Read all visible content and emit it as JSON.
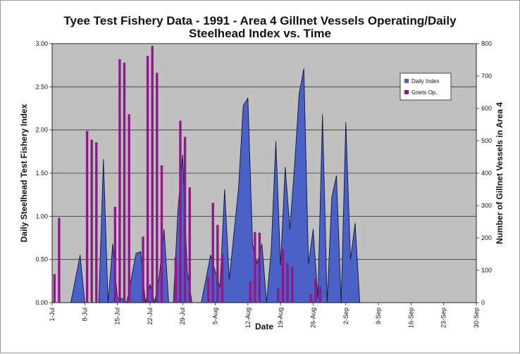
{
  "chart_data": {
    "type": "area+bar",
    "title_line1": "Tyee Test Fishery Data - 1991 - Area 4 Gillnet Vessels Operating/Daily",
    "title_line2": "Steelhead Index vs. Time",
    "xlabel": "Date",
    "ylabel_left": "Daily Steelhead Test Fishery Index",
    "ylabel_right": "Number of Gillnet Vessels in Area 4",
    "x_range_days": [
      0,
      91
    ],
    "x_ticks": [
      {
        "day": 0,
        "label": "1-Jul"
      },
      {
        "day": 7,
        "label": "8-Jul"
      },
      {
        "day": 14,
        "label": "15-Jul"
      },
      {
        "day": 21,
        "label": "22-Jul"
      },
      {
        "day": 28,
        "label": "29-Jul"
      },
      {
        "day": 35,
        "label": "5-Aug"
      },
      {
        "day": 42,
        "label": "12-Aug"
      },
      {
        "day": 49,
        "label": "19-Aug"
      },
      {
        "day": 56,
        "label": "26-Aug"
      },
      {
        "day": 63,
        "label": "2-Sep"
      },
      {
        "day": 70,
        "label": "9-Sep"
      },
      {
        "day": 77,
        "label": "16-Sep"
      },
      {
        "day": 84,
        "label": "23-Sep"
      },
      {
        "day": 91,
        "label": "30-Sep"
      }
    ],
    "y_left": {
      "min": 0,
      "max": 3.0,
      "ticks": [
        "0.00",
        "0.50",
        "1.00",
        "1.50",
        "2.00",
        "2.50",
        "3.00"
      ]
    },
    "y_right": {
      "min": 0,
      "max": 800,
      "ticks": [
        "0",
        "100",
        "200",
        "300",
        "400",
        "500",
        "600",
        "700",
        "800"
      ]
    },
    "gridlines": true,
    "legend_position": "top-right",
    "series": [
      {
        "name": "Daily Index",
        "axis": "left",
        "kind": "area",
        "color": "#4a62c8",
        "points": [
          [
            4,
            0
          ],
          [
            6,
            0.55
          ],
          [
            7,
            0
          ],
          [
            10,
            0
          ],
          [
            11,
            1.66
          ],
          [
            12,
            0
          ],
          [
            13,
            0.68
          ],
          [
            14,
            0.05
          ],
          [
            15,
            0.05
          ],
          [
            16,
            0
          ],
          [
            18,
            0.57
          ],
          [
            19,
            0.59
          ],
          [
            20,
            0
          ],
          [
            21,
            0.21
          ],
          [
            22,
            0
          ],
          [
            23,
            0.31
          ],
          [
            24,
            0.85
          ],
          [
            25,
            0
          ],
          [
            26,
            0
          ],
          [
            27,
            1.08
          ],
          [
            28,
            1.71
          ],
          [
            29,
            0.35
          ],
          [
            30,
            0
          ],
          [
            32,
            0
          ],
          [
            34,
            0.55
          ],
          [
            35,
            0.36
          ],
          [
            36,
            0.18
          ],
          [
            37,
            1.31
          ],
          [
            38,
            0.27
          ],
          [
            40,
            1.33
          ],
          [
            41,
            2.28
          ],
          [
            42,
            2.37
          ],
          [
            43,
            0.67
          ],
          [
            44,
            0.45
          ],
          [
            45,
            0.68
          ],
          [
            46,
            0
          ],
          [
            47,
            0.61
          ],
          [
            48,
            1.87
          ],
          [
            49,
            0.43
          ],
          [
            50,
            1.57
          ],
          [
            51,
            0.85
          ],
          [
            52,
            1.58
          ],
          [
            53,
            2.42
          ],
          [
            54,
            2.71
          ],
          [
            55,
            0.45
          ],
          [
            56,
            0.85
          ],
          [
            57,
            0.05
          ],
          [
            58,
            2.18
          ],
          [
            59,
            0
          ],
          [
            60,
            1.22
          ],
          [
            61,
            1.47
          ],
          [
            62,
            0
          ],
          [
            63,
            2.09
          ],
          [
            64,
            0.5
          ],
          [
            65,
            0.92
          ],
          [
            66,
            0
          ]
        ]
      },
      {
        "name": "Gnets Op.",
        "axis": "right",
        "kind": "bar",
        "color": "#8e1a8a",
        "bars": [
          [
            0,
            88
          ],
          [
            1,
            262
          ],
          [
            7,
            530
          ],
          [
            8,
            503
          ],
          [
            9,
            495
          ],
          [
            13,
            296
          ],
          [
            14,
            752
          ],
          [
            15,
            741
          ],
          [
            16,
            582
          ],
          [
            19,
            204
          ],
          [
            20,
            762
          ],
          [
            21,
            793
          ],
          [
            22,
            710
          ],
          [
            23,
            424
          ],
          [
            26,
            140
          ],
          [
            27,
            562
          ],
          [
            28,
            512
          ],
          [
            29,
            356
          ],
          [
            33,
            78
          ],
          [
            34,
            308
          ],
          [
            35,
            240
          ],
          [
            36,
            150
          ],
          [
            42,
            66
          ],
          [
            43,
            218
          ],
          [
            44,
            216
          ],
          [
            48,
            45
          ],
          [
            49,
            165
          ],
          [
            50,
            122
          ],
          [
            51,
            110
          ],
          [
            55,
            26
          ],
          [
            56,
            75
          ],
          [
            57,
            50
          ]
        ]
      }
    ],
    "legend": [
      "Daily Index",
      "Gnets Op."
    ]
  }
}
